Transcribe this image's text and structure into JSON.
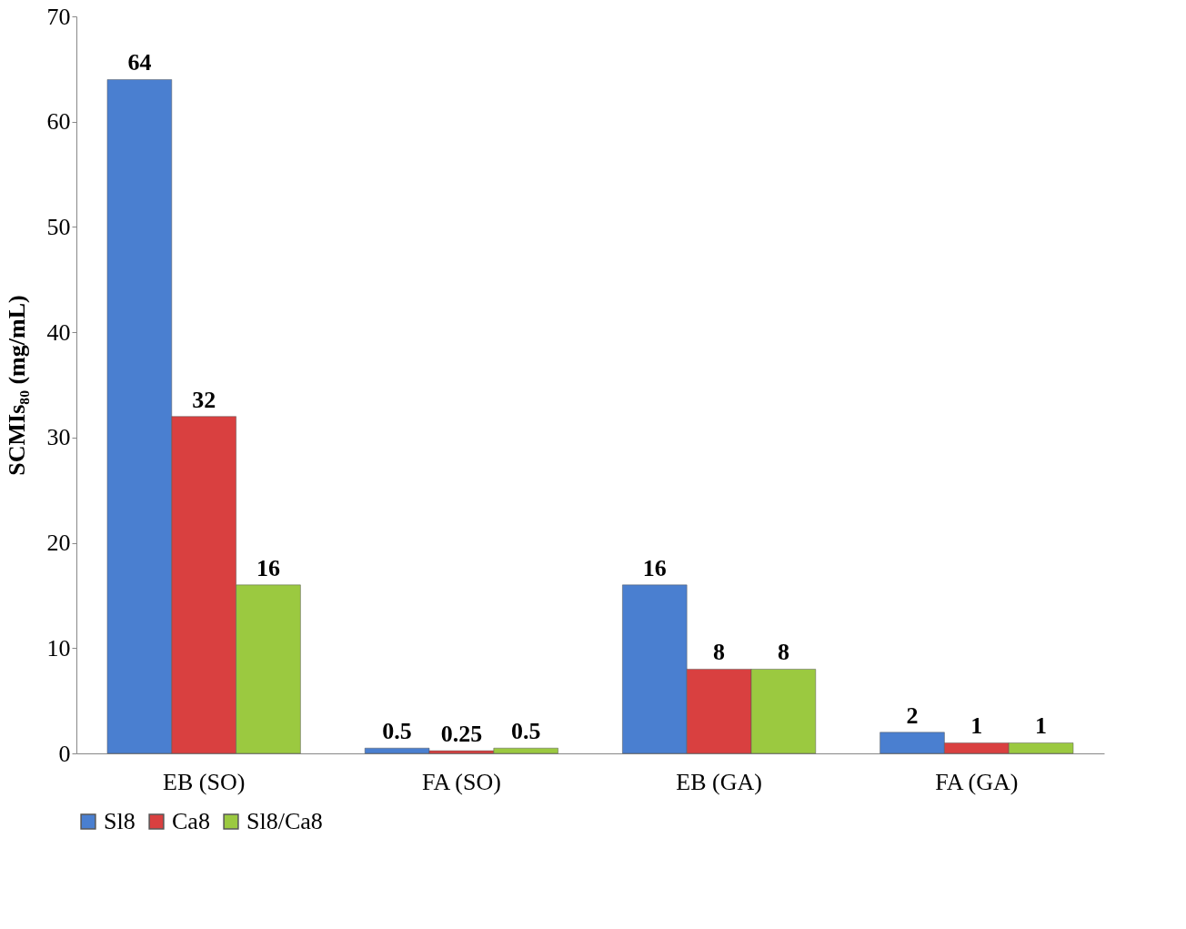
{
  "chart_data": {
    "type": "bar",
    "ylabel": "SCMIs₈₀ (mg/mL)",
    "categories": [
      "EB (SO)",
      "FA (SO)",
      "EB (GA)",
      "FA (GA)"
    ],
    "series": [
      {
        "name": "Sl8",
        "color": "#4a7fd0",
        "values": [
          64,
          0.5,
          16,
          2
        ]
      },
      {
        "name": "Ca8",
        "color": "#d94040",
        "values": [
          32,
          0.25,
          8,
          1
        ]
      },
      {
        "name": "Sl8/Ca8",
        "color": "#9bc940",
        "values": [
          16,
          0.5,
          8,
          1
        ]
      }
    ],
    "ylim": [
      0,
      70
    ],
    "yticks": [
      0,
      10,
      20,
      30,
      40,
      50,
      60,
      70
    ],
    "grid": false,
    "legend": "bottom",
    "data_labels": true
  }
}
